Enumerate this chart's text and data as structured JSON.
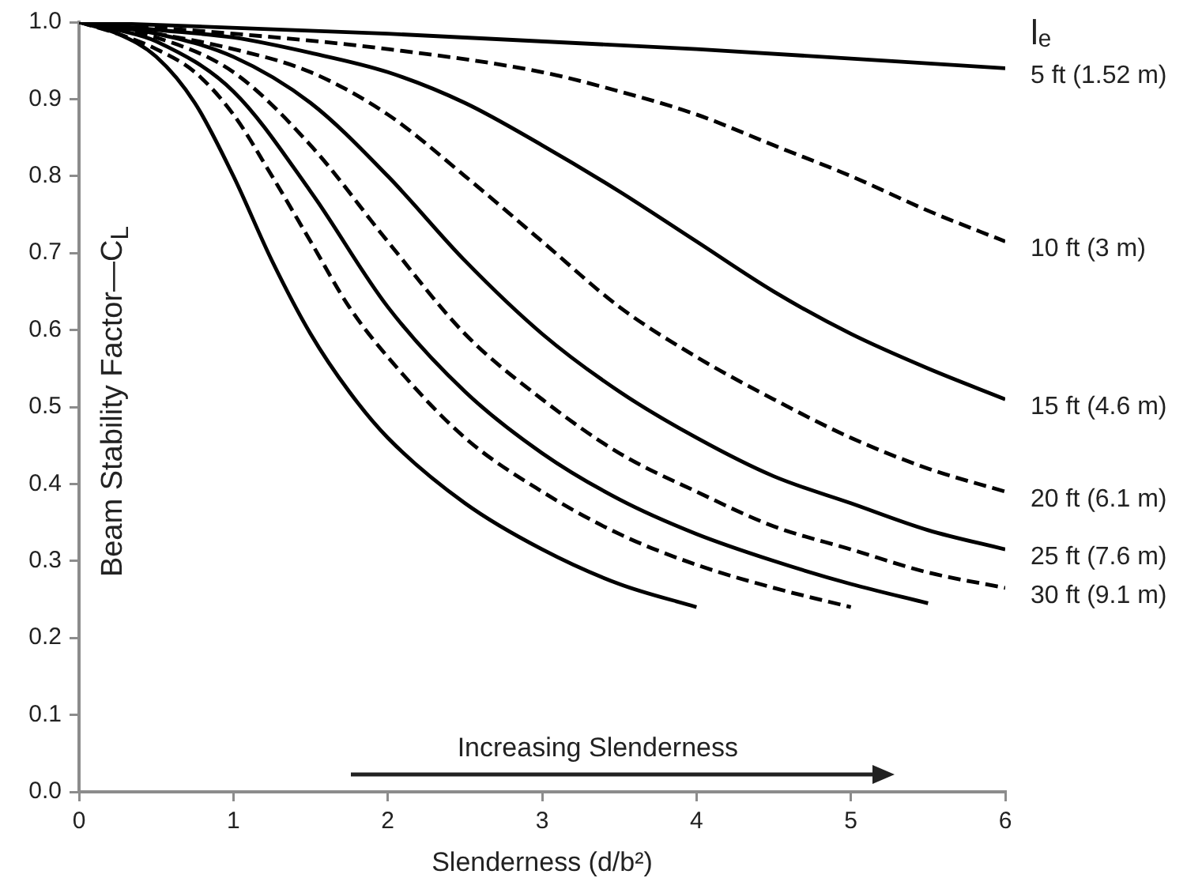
{
  "chart_data": {
    "type": "line",
    "xlabel": "Slenderness (d/b²)",
    "ylabel": "Beam Stability Factor—C$_{L}$",
    "legend_title": "lₑ",
    "annotations": [
      "Increasing Slenderness"
    ],
    "xlim": [
      0,
      6
    ],
    "xticks": [
      0,
      1,
      2,
      3,
      4,
      5,
      6
    ],
    "ylim": [
      0,
      1
    ],
    "yticks": [
      {
        "value": 0,
        "label": "0.0"
      },
      0.1,
      0.2,
      0.3,
      0.4,
      0.5,
      0.6,
      0.7,
      0.8,
      0.9,
      {
        "value": 1,
        "label": "1.0"
      }
    ],
    "series": [
      {
        "name": "5 ft (1.52 m)",
        "color": "#000000",
        "line_style": "solid",
        "x": [
          0,
          2,
          4,
          6
        ],
        "values": [
          1,
          0.985,
          0.965,
          0.94
        ]
      },
      {
        "name": "10 ft (3 m)",
        "color": "#000000",
        "line_style": "dashed",
        "x": [
          0,
          1,
          2,
          3,
          3.5,
          4,
          4.5,
          5,
          5.5,
          6
        ],
        "values": [
          1,
          0.985,
          0.965,
          0.935,
          0.91,
          0.88,
          0.84,
          0.8,
          0.755,
          0.715
        ]
      },
      {
        "name": "15 ft (4.6 m)",
        "color": "#000000",
        "line_style": "solid",
        "x": [
          0,
          0.5,
          1,
          1.5,
          2,
          2.5,
          3,
          3.5,
          4,
          4.5,
          5,
          5.5,
          6
        ],
        "values": [
          1,
          0.99,
          0.98,
          0.96,
          0.935,
          0.895,
          0.84,
          0.78,
          0.715,
          0.65,
          0.595,
          0.55,
          0.51
        ]
      },
      {
        "name": "20 ft (6.1 m)",
        "color": "#000000",
        "line_style": "dashed",
        "x": [
          0,
          0.5,
          1,
          1.5,
          2,
          2.5,
          3,
          3.5,
          4,
          4.5,
          5,
          5.5,
          6
        ],
        "values": [
          1,
          0.985,
          0.965,
          0.935,
          0.88,
          0.8,
          0.715,
          0.63,
          0.565,
          0.51,
          0.46,
          0.42,
          0.39
        ]
      },
      {
        "name": "25 ft (7.6 m)",
        "color": "#000000",
        "line_style": "solid",
        "x": [
          0,
          0.5,
          1,
          1.5,
          2,
          2.5,
          3,
          3.5,
          4,
          4.5,
          5,
          5.5,
          6
        ],
        "values": [
          1,
          0.985,
          0.955,
          0.895,
          0.8,
          0.69,
          0.595,
          0.52,
          0.46,
          0.41,
          0.375,
          0.34,
          0.315
        ]
      },
      {
        "name": "30 ft (9.1 m)",
        "color": "#000000",
        "line_style": "dashed",
        "x": [
          0,
          0.25,
          0.5,
          1,
          1.5,
          2,
          2.5,
          3,
          3.5,
          4,
          4.5,
          5,
          5.5,
          6
        ],
        "values": [
          1,
          0.99,
          0.98,
          0.935,
          0.84,
          0.715,
          0.595,
          0.51,
          0.44,
          0.39,
          0.345,
          0.315,
          0.285,
          0.265
        ]
      },
      {
        "color": "#000000",
        "line_style": "solid",
        "x": [
          0,
          0.25,
          0.5,
          1,
          1.5,
          2,
          2.5,
          3,
          3.5,
          4,
          4.5,
          5,
          5.5
        ],
        "values": [
          1,
          0.99,
          0.975,
          0.91,
          0.78,
          0.63,
          0.52,
          0.44,
          0.38,
          0.335,
          0.3,
          0.27,
          0.245
        ]
      },
      {
        "color": "#000000",
        "line_style": "dashed",
        "x": [
          0,
          0.25,
          0.5,
          0.75,
          1,
          1.25,
          1.5,
          1.75,
          2,
          2.5,
          3,
          3.5,
          4,
          4.5,
          5
        ],
        "values": [
          1,
          0.985,
          0.965,
          0.935,
          0.88,
          0.8,
          0.715,
          0.63,
          0.565,
          0.46,
          0.39,
          0.335,
          0.295,
          0.265,
          0.24
        ]
      },
      {
        "color": "#000000",
        "line_style": "solid",
        "x": [
          0,
          0.25,
          0.5,
          0.75,
          1,
          1.25,
          1.5,
          1.75,
          2,
          2.5,
          3,
          3.5,
          4
        ],
        "values": [
          1,
          0.985,
          0.955,
          0.895,
          0.8,
          0.69,
          0.595,
          0.52,
          0.46,
          0.375,
          0.315,
          0.27,
          0.24
        ]
      }
    ]
  }
}
